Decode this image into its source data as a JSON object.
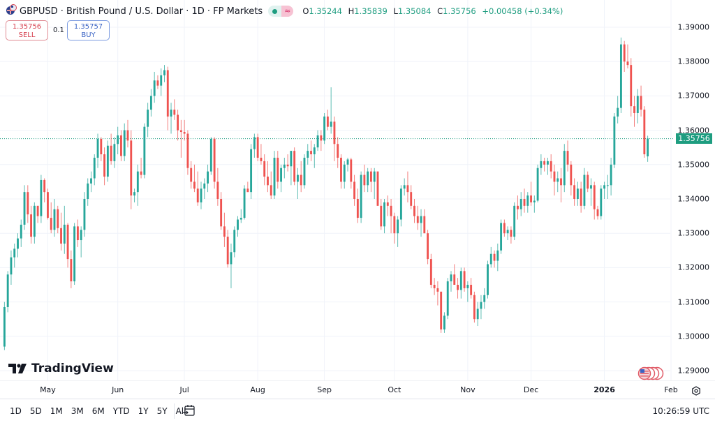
{
  "header": {
    "flag_icon": "gbp-usd-flag-icon",
    "title": "GBPUSD · British Pound / U.S. Dollar · 1D · FP Markets",
    "status_icon": "market-open-dot-icon",
    "wave_icon": "≈",
    "ohlc": {
      "o_label": "O",
      "o": "1.35244",
      "h_label": "H",
      "h": "1.35839",
      "l_label": "L",
      "l": "1.35084",
      "c_label": "C",
      "c": "1.35756",
      "change": "+0.00458 (+0.34%)"
    }
  },
  "trade": {
    "sell_price": "1.35756",
    "sell_label": "SELL",
    "spread": "0.1",
    "buy_price": "1.35757",
    "buy_label": "BUY"
  },
  "last_price_label": "1.35756",
  "bottom": {
    "ranges": [
      "1D",
      "5D",
      "1M",
      "3M",
      "6M",
      "YTD",
      "1Y",
      "5Y",
      "All"
    ],
    "calendar_icon": "go-to-date-icon",
    "clock": "10:26:59 UTC"
  },
  "logo_text": "TradingView",
  "colors": {
    "up": "#26a69a",
    "down": "#ef5350",
    "up_hdr": "#1e9d80",
    "grid": "#f0f3fa"
  },
  "chart_data": {
    "type": "candlestick",
    "title": "GBPUSD · British Pound / U.S. Dollar · 1D · FP Markets",
    "ylim": [
      1.2875,
      1.3935
    ],
    "y_ticks": [
      "1.39000",
      "1.38000",
      "1.37000",
      "1.36000",
      "1.35000",
      "1.34000",
      "1.33000",
      "1.32000",
      "1.31000",
      "1.30000",
      "1.29000"
    ],
    "y_tick_values": [
      1.39,
      1.38,
      1.37,
      1.36,
      1.35,
      1.34,
      1.33,
      1.32,
      1.31,
      1.3,
      1.29
    ],
    "x_ticks": [
      {
        "label": "May",
        "index": 13,
        "bold": false
      },
      {
        "label": "Jun",
        "index": 34,
        "bold": false
      },
      {
        "label": "Jul",
        "index": 54,
        "bold": false
      },
      {
        "label": "Aug",
        "index": 76,
        "bold": false
      },
      {
        "label": "Sep",
        "index": 96,
        "bold": false
      },
      {
        "label": "Oct",
        "index": 117,
        "bold": false
      },
      {
        "label": "Nov",
        "index": 139,
        "bold": false
      },
      {
        "label": "Dec",
        "index": 158,
        "bold": false
      },
      {
        "label": "2026",
        "index": 180,
        "bold": true
      },
      {
        "label": "Feb",
        "index": 200,
        "bold": false
      }
    ],
    "last_price": 1.35756,
    "candles": [
      [
        1.297,
        1.31,
        1.296,
        1.3085
      ],
      [
        1.3085,
        1.319,
        1.307,
        1.318
      ],
      [
        1.318,
        1.325,
        1.315,
        1.323
      ],
      [
        1.323,
        1.327,
        1.32,
        1.3255
      ],
      [
        1.3255,
        1.33,
        1.323,
        1.3285
      ],
      [
        1.3285,
        1.334,
        1.326,
        1.3325
      ],
      [
        1.3325,
        1.344,
        1.331,
        1.342
      ],
      [
        1.342,
        1.344,
        1.333,
        1.3355
      ],
      [
        1.3355,
        1.338,
        1.327,
        1.329
      ],
      [
        1.329,
        1.339,
        1.327,
        1.338
      ],
      [
        1.338,
        1.337,
        1.333,
        1.335
      ],
      [
        1.335,
        1.347,
        1.333,
        1.3455
      ],
      [
        1.3455,
        1.346,
        1.339,
        1.342
      ],
      [
        1.342,
        1.343,
        1.334,
        1.3345
      ],
      [
        1.3345,
        1.339,
        1.33,
        1.331
      ],
      [
        1.331,
        1.34,
        1.329,
        1.337
      ],
      [
        1.337,
        1.338,
        1.33,
        1.3315
      ],
      [
        1.3315,
        1.336,
        1.325,
        1.327
      ],
      [
        1.327,
        1.338,
        1.324,
        1.3325
      ],
      [
        1.3325,
        1.333,
        1.32,
        1.3225
      ],
      [
        1.3225,
        1.325,
        1.314,
        1.316
      ],
      [
        1.316,
        1.333,
        1.315,
        1.332
      ],
      [
        1.332,
        1.334,
        1.326,
        1.328
      ],
      [
        1.328,
        1.332,
        1.323,
        1.331
      ],
      [
        1.331,
        1.342,
        1.329,
        1.34
      ],
      [
        1.34,
        1.346,
        1.338,
        1.3445
      ],
      [
        1.3445,
        1.348,
        1.342,
        1.346
      ],
      [
        1.346,
        1.353,
        1.344,
        1.352
      ],
      [
        1.352,
        1.359,
        1.349,
        1.3575
      ],
      [
        1.3575,
        1.358,
        1.351,
        1.353
      ],
      [
        1.353,
        1.355,
        1.344,
        1.3465
      ],
      [
        1.3465,
        1.357,
        1.345,
        1.3555
      ],
      [
        1.3555,
        1.359,
        1.35,
        1.351
      ],
      [
        1.351,
        1.358,
        1.349,
        1.356
      ],
      [
        1.356,
        1.361,
        1.353,
        1.3585
      ],
      [
        1.3585,
        1.36,
        1.351,
        1.3525
      ],
      [
        1.3525,
        1.362,
        1.351,
        1.36
      ],
      [
        1.36,
        1.363,
        1.355,
        1.357
      ],
      [
        1.357,
        1.36,
        1.337,
        1.341
      ],
      [
        1.341,
        1.343,
        1.339,
        1.342
      ],
      [
        1.342,
        1.35,
        1.338,
        1.348
      ],
      [
        1.348,
        1.352,
        1.346,
        1.347
      ],
      [
        1.347,
        1.362,
        1.346,
        1.361
      ],
      [
        1.361,
        1.368,
        1.358,
        1.366
      ],
      [
        1.366,
        1.372,
        1.364,
        1.37
      ],
      [
        1.37,
        1.377,
        1.368,
        1.3745
      ],
      [
        1.3745,
        1.376,
        1.372,
        1.373
      ],
      [
        1.373,
        1.378,
        1.37,
        1.376
      ],
      [
        1.376,
        1.379,
        1.374,
        1.3775
      ],
      [
        1.3775,
        1.3785,
        1.36,
        1.364
      ],
      [
        1.364,
        1.368,
        1.359,
        1.366
      ],
      [
        1.366,
        1.369,
        1.363,
        1.3645
      ],
      [
        1.3645,
        1.366,
        1.357,
        1.36
      ],
      [
        1.36,
        1.363,
        1.352,
        1.3595
      ],
      [
        1.3595,
        1.363,
        1.357,
        1.359
      ],
      [
        1.359,
        1.36,
        1.347,
        1.349
      ],
      [
        1.349,
        1.351,
        1.343,
        1.345
      ],
      [
        1.345,
        1.35,
        1.342,
        1.343
      ],
      [
        1.343,
        1.348,
        1.338,
        1.339
      ],
      [
        1.339,
        1.345,
        1.337,
        1.343
      ],
      [
        1.343,
        1.346,
        1.34,
        1.3445
      ],
      [
        1.3445,
        1.35,
        1.342,
        1.348
      ],
      [
        1.348,
        1.358,
        1.347,
        1.3575
      ],
      [
        1.3575,
        1.358,
        1.343,
        1.345
      ],
      [
        1.345,
        1.349,
        1.338,
        1.34
      ],
      [
        1.34,
        1.342,
        1.331,
        1.332
      ],
      [
        1.332,
        1.336,
        1.326,
        1.329
      ],
      [
        1.329,
        1.331,
        1.32,
        1.321
      ],
      [
        1.321,
        1.327,
        1.314,
        1.3245
      ],
      [
        1.3245,
        1.332,
        1.323,
        1.331
      ],
      [
        1.331,
        1.335,
        1.329,
        1.334
      ],
      [
        1.334,
        1.337,
        1.333,
        1.3345
      ],
      [
        1.3345,
        1.344,
        1.334,
        1.343
      ],
      [
        1.343,
        1.345,
        1.342,
        1.342
      ],
      [
        1.342,
        1.356,
        1.34,
        1.3545
      ],
      [
        1.3545,
        1.359,
        1.352,
        1.358
      ],
      [
        1.358,
        1.359,
        1.351,
        1.352
      ],
      [
        1.352,
        1.356,
        1.35,
        1.351
      ],
      [
        1.351,
        1.353,
        1.344,
        1.3465
      ],
      [
        1.3465,
        1.351,
        1.342,
        1.344
      ],
      [
        1.344,
        1.348,
        1.34,
        1.341
      ],
      [
        1.341,
        1.354,
        1.34,
        1.352
      ],
      [
        1.352,
        1.354,
        1.343,
        1.345
      ],
      [
        1.345,
        1.35,
        1.342,
        1.349
      ],
      [
        1.349,
        1.352,
        1.346,
        1.35
      ],
      [
        1.35,
        1.353,
        1.348,
        1.3495
      ],
      [
        1.3495,
        1.354,
        1.344,
        1.354
      ],
      [
        1.354,
        1.355,
        1.344,
        1.345
      ],
      [
        1.345,
        1.349,
        1.34,
        1.347
      ],
      [
        1.347,
        1.351,
        1.342,
        1.344
      ],
      [
        1.344,
        1.353,
        1.343,
        1.352
      ],
      [
        1.352,
        1.356,
        1.35,
        1.354
      ],
      [
        1.354,
        1.357,
        1.351,
        1.353
      ],
      [
        1.353,
        1.356,
        1.349,
        1.355
      ],
      [
        1.355,
        1.36,
        1.354,
        1.3585
      ],
      [
        1.3585,
        1.36,
        1.354,
        1.357
      ],
      [
        1.357,
        1.365,
        1.356,
        1.364
      ],
      [
        1.364,
        1.366,
        1.36,
        1.361
      ],
      [
        1.361,
        1.3725,
        1.359,
        1.3625
      ],
      [
        1.3625,
        1.364,
        1.351,
        1.356
      ],
      [
        1.356,
        1.358,
        1.349,
        1.352
      ],
      [
        1.352,
        1.353,
        1.343,
        1.345
      ],
      [
        1.345,
        1.351,
        1.343,
        1.35
      ],
      [
        1.35,
        1.352,
        1.348,
        1.3515
      ],
      [
        1.3515,
        1.352,
        1.343,
        1.345
      ],
      [
        1.345,
        1.347,
        1.338,
        1.34
      ],
      [
        1.34,
        1.343,
        1.333,
        1.3345
      ],
      [
        1.3345,
        1.348,
        1.333,
        1.347
      ],
      [
        1.347,
        1.35,
        1.342,
        1.344
      ],
      [
        1.344,
        1.349,
        1.342,
        1.348
      ],
      [
        1.348,
        1.349,
        1.342,
        1.345
      ],
      [
        1.345,
        1.349,
        1.34,
        1.348
      ],
      [
        1.348,
        1.348,
        1.338,
        1.338
      ],
      [
        1.338,
        1.34,
        1.331,
        1.332
      ],
      [
        1.332,
        1.34,
        1.33,
        1.339
      ],
      [
        1.339,
        1.341,
        1.335,
        1.338
      ],
      [
        1.338,
        1.34,
        1.33,
        1.335
      ],
      [
        1.335,
        1.336,
        1.327,
        1.33
      ],
      [
        1.33,
        1.335,
        1.326,
        1.334
      ],
      [
        1.334,
        1.344,
        1.332,
        1.343
      ],
      [
        1.343,
        1.346,
        1.341,
        1.344
      ],
      [
        1.344,
        1.348,
        1.339,
        1.342
      ],
      [
        1.342,
        1.344,
        1.337,
        1.338
      ],
      [
        1.338,
        1.34,
        1.333,
        1.335
      ],
      [
        1.335,
        1.338,
        1.331,
        1.333
      ],
      [
        1.333,
        1.337,
        1.329,
        1.335
      ],
      [
        1.335,
        1.337,
        1.33,
        1.33
      ],
      [
        1.33,
        1.331,
        1.321,
        1.3225
      ],
      [
        1.3225,
        1.324,
        1.314,
        1.315
      ],
      [
        1.315,
        1.317,
        1.312,
        1.314
      ],
      [
        1.314,
        1.316,
        1.309,
        1.313
      ],
      [
        1.313,
        1.313,
        1.301,
        1.302
      ],
      [
        1.302,
        1.307,
        1.301,
        1.306
      ],
      [
        1.306,
        1.317,
        1.305,
        1.316
      ],
      [
        1.316,
        1.319,
        1.313,
        1.318
      ],
      [
        1.318,
        1.321,
        1.315,
        1.315
      ],
      [
        1.315,
        1.317,
        1.311,
        1.3135
      ],
      [
        1.3135,
        1.32,
        1.311,
        1.319
      ],
      [
        1.319,
        1.32,
        1.313,
        1.314
      ],
      [
        1.314,
        1.316,
        1.31,
        1.315
      ],
      [
        1.315,
        1.317,
        1.311,
        1.312
      ],
      [
        1.312,
        1.313,
        1.304,
        1.305
      ],
      [
        1.305,
        1.31,
        1.303,
        1.308
      ],
      [
        1.308,
        1.312,
        1.305,
        1.31
      ],
      [
        1.31,
        1.314,
        1.308,
        1.312
      ],
      [
        1.312,
        1.322,
        1.311,
        1.321
      ],
      [
        1.321,
        1.326,
        1.32,
        1.324
      ],
      [
        1.324,
        1.325,
        1.32,
        1.322
      ],
      [
        1.322,
        1.327,
        1.319,
        1.325
      ],
      [
        1.325,
        1.334,
        1.324,
        1.333
      ],
      [
        1.333,
        1.334,
        1.329,
        1.33
      ],
      [
        1.33,
        1.332,
        1.328,
        1.331
      ],
      [
        1.331,
        1.332,
        1.327,
        1.329
      ],
      [
        1.329,
        1.339,
        1.328,
        1.338
      ],
      [
        1.338,
        1.341,
        1.334,
        1.337
      ],
      [
        1.337,
        1.342,
        1.335,
        1.34
      ],
      [
        1.34,
        1.343,
        1.336,
        1.338
      ],
      [
        1.338,
        1.342,
        1.336,
        1.341
      ],
      [
        1.341,
        1.345,
        1.338,
        1.339
      ],
      [
        1.339,
        1.341,
        1.336,
        1.3395
      ],
      [
        1.3395,
        1.35,
        1.339,
        1.349
      ],
      [
        1.349,
        1.353,
        1.347,
        1.351
      ],
      [
        1.351,
        1.352,
        1.348,
        1.35
      ],
      [
        1.35,
        1.352,
        1.347,
        1.351
      ],
      [
        1.351,
        1.353,
        1.346,
        1.348
      ],
      [
        1.348,
        1.35,
        1.341,
        1.345
      ],
      [
        1.345,
        1.348,
        1.342,
        1.346
      ],
      [
        1.346,
        1.349,
        1.339,
        1.344
      ],
      [
        1.344,
        1.356,
        1.342,
        1.354
      ],
      [
        1.354,
        1.357,
        1.348,
        1.35
      ],
      [
        1.35,
        1.351,
        1.341,
        1.344
      ],
      [
        1.344,
        1.346,
        1.338,
        1.34
      ],
      [
        1.34,
        1.345,
        1.338,
        1.343
      ],
      [
        1.343,
        1.345,
        1.336,
        1.338
      ],
      [
        1.338,
        1.349,
        1.337,
        1.347
      ],
      [
        1.347,
        1.348,
        1.342,
        1.343
      ],
      [
        1.343,
        1.346,
        1.338,
        1.344
      ],
      [
        1.344,
        1.345,
        1.334,
        1.337
      ],
      [
        1.337,
        1.338,
        1.334,
        1.335
      ],
      [
        1.335,
        1.344,
        1.334,
        1.343
      ],
      [
        1.343,
        1.345,
        1.34,
        1.344
      ],
      [
        1.344,
        1.347,
        1.34,
        1.344
      ],
      [
        1.344,
        1.352,
        1.341,
        1.35
      ],
      [
        1.35,
        1.365,
        1.349,
        1.364
      ],
      [
        1.364,
        1.37,
        1.362,
        1.3665
      ],
      [
        1.3665,
        1.387,
        1.365,
        1.385
      ],
      [
        1.385,
        1.386,
        1.377,
        1.38
      ],
      [
        1.38,
        1.385,
        1.378,
        1.379
      ],
      [
        1.379,
        1.381,
        1.364,
        1.367
      ],
      [
        1.367,
        1.37,
        1.361,
        1.365
      ],
      [
        1.365,
        1.372,
        1.362,
        1.37
      ],
      [
        1.37,
        1.373,
        1.364,
        1.366
      ],
      [
        1.366,
        1.367,
        1.352,
        1.353
      ],
      [
        1.3524,
        1.3584,
        1.3508,
        1.3576
      ]
    ]
  }
}
